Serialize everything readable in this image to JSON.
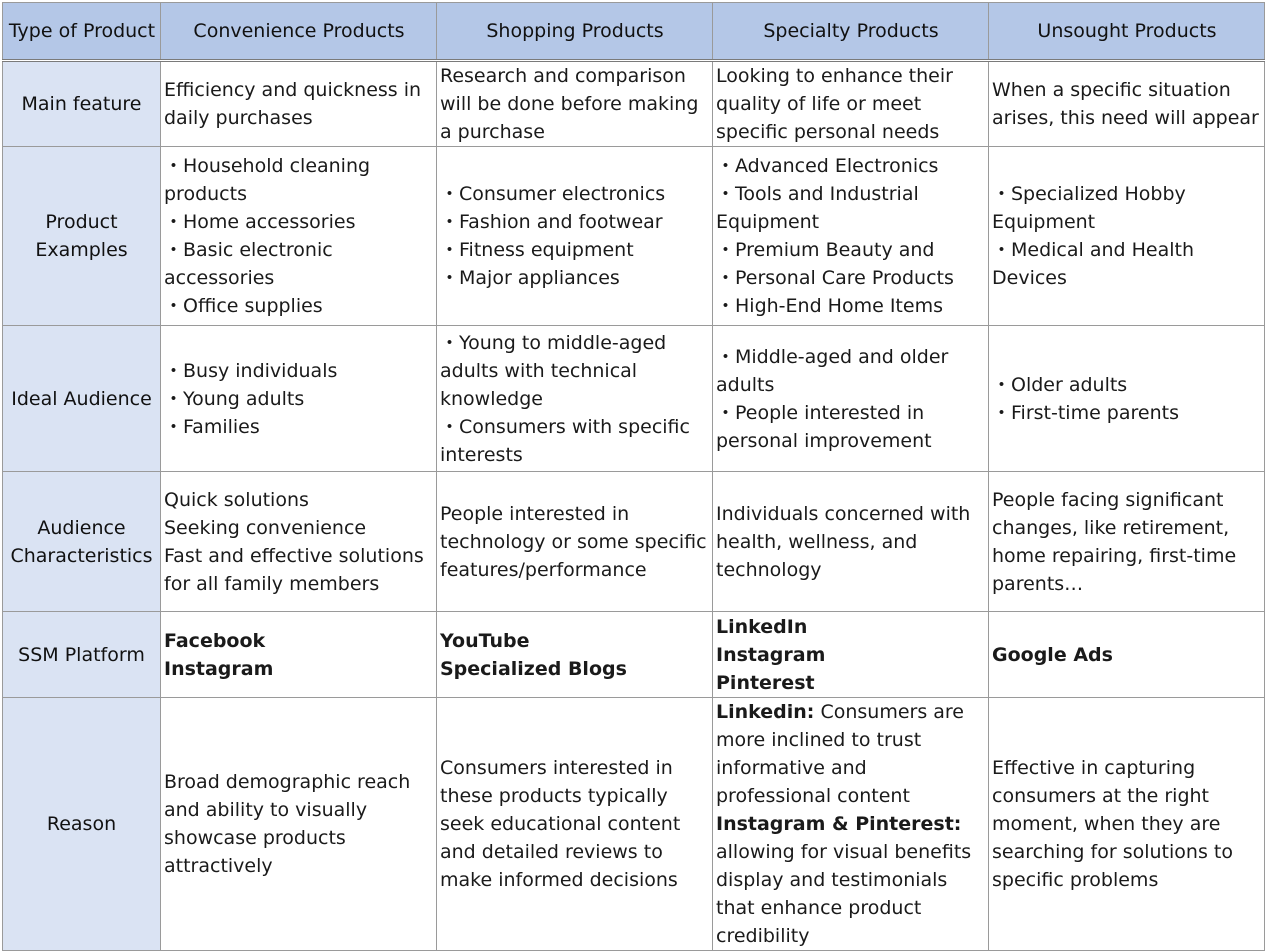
{
  "header": {
    "corner": "Type of Product",
    "columns": [
      "Convenience Products",
      "Shopping Products",
      "Specialty Products",
      "Unsought Products"
    ]
  },
  "rows": [
    {
      "label": "Main feature",
      "cells": [
        {
          "lines": [
            "Efficiency and quickness in daily purchases"
          ]
        },
        {
          "lines": [
            "Research and comparison will be done before making a purchase"
          ]
        },
        {
          "lines": [
            "Looking to enhance their quality of life or meet specific personal needs"
          ]
        },
        {
          "lines": [
            "When a specific situation arises, this need will appear"
          ]
        }
      ]
    },
    {
      "label": "Product Examples",
      "cells": [
        {
          "lines": [
            "・Household cleaning products",
            "・Home accessories",
            "・Basic electronic accessories",
            "・Office supplies"
          ]
        },
        {
          "lines": [
            "・Consumer electronics",
            "・Fashion and footwear",
            "・Fitness equipment",
            "・Major appliances"
          ]
        },
        {
          "lines": [
            "・Advanced Electronics",
            "・Tools and Industrial Equipment",
            "・Premium Beauty and",
            "・Personal Care Products",
            "・High-End Home Items"
          ]
        },
        {
          "lines": [
            "・Specialized Hobby Equipment",
            "・Medical and Health Devices"
          ]
        }
      ]
    },
    {
      "label": "Ideal Audience",
      "cells": [
        {
          "lines": [
            "・Busy individuals",
            "・Young adults",
            "・Families"
          ]
        },
        {
          "lines": [
            "・Young to middle-aged adults with technical knowledge",
            "・Consumers with specific interests"
          ]
        },
        {
          "lines": [
            "・Middle-aged and older adults",
            "・People interested in personal improvement"
          ]
        },
        {
          "lines": [
            "・Older adults",
            "・First-time parents"
          ]
        }
      ]
    },
    {
      "label": "Audience Characteristics",
      "cells": [
        {
          "lines": [
            "Quick solutions",
            "Seeking convenience",
            "Fast and effective solutions for  all family members"
          ]
        },
        {
          "lines": [
            "People interested in technology or some specific features/performance"
          ]
        },
        {
          "lines": [
            "Individuals concerned with health, wellness, and technology"
          ]
        },
        {
          "lines": [
            "People facing significant changes, like retirement, home repairing, first-time parents…"
          ]
        }
      ]
    },
    {
      "label": "SSM Platform",
      "cells": [
        {
          "lines": [
            "Facebook",
            "Instagram"
          ]
        },
        {
          "lines": [
            "YouTube",
            "Specialized Blogs"
          ]
        },
        {
          "lines": [
            "LinkedIn",
            "Instagram",
            "Pinterest"
          ]
        },
        {
          "lines": [
            "Google Ads"
          ]
        }
      ]
    },
    {
      "label": "Reason",
      "cells": [
        {
          "lines": [
            "Broad demographic reach and ability to visually showcase products attractively"
          ]
        },
        {
          "lines": [
            "Consumers interested in these products typically seek educational content and detailed reviews to make informed decisions"
          ]
        },
        {
          "segments": [
            {
              "bold": "Linkedin:",
              "text": " Consumers are more inclined to trust informative and professional content"
            },
            {
              "bold": "Instagram & Pinterest:",
              "text": " allowing for visual benefits display and testimonials that enhance product credibility"
            }
          ]
        },
        {
          "lines": [
            "Effective in capturing consumers at the right moment, when they are searching for solutions to specific problems"
          ]
        }
      ]
    }
  ]
}
